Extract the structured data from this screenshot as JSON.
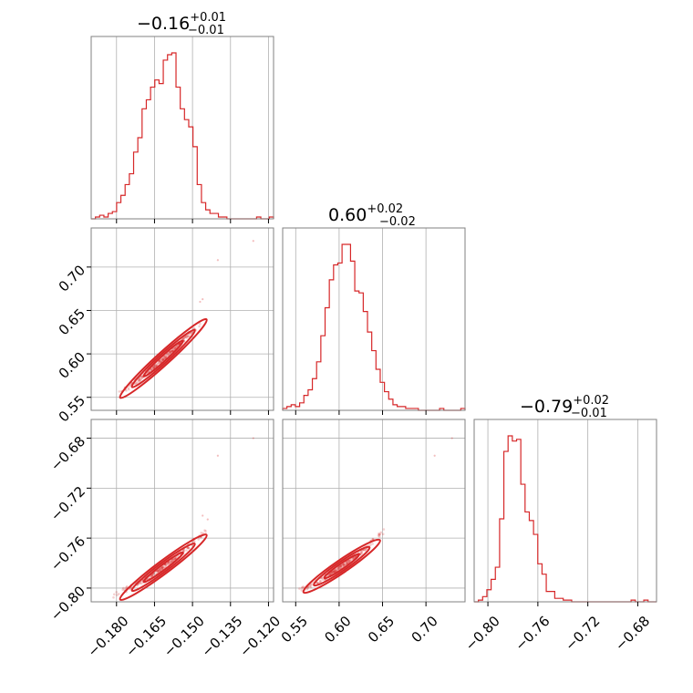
{
  "chart_data": {
    "type": "corner",
    "color": "#d62728",
    "grid": true,
    "parameters": [
      {
        "title_main": "−0.16",
        "title_sup": "+0.01",
        "title_sub": "−0.01",
        "range": [
          -0.19,
          -0.118
        ],
        "median": -0.163,
        "ticks": [
          -0.18,
          -0.165,
          -0.15,
          -0.135,
          -0.12
        ],
        "tick_labels": [
          "−0.180",
          "−0.165",
          "−0.150",
          "−0.135",
          "−0.120"
        ]
      },
      {
        "title_main": "0.60",
        "title_sup": "+0.02",
        "title_sub": "−0.02",
        "range": [
          0.535,
          0.745
        ],
        "median": 0.6,
        "ticks": [
          0.55,
          0.6,
          0.65,
          0.7
        ],
        "tick_labels": [
          "0.55",
          "0.60",
          "0.65",
          "0.70"
        ]
      },
      {
        "title_main": "−0.79",
        "title_sup": "+0.02",
        "title_sub": "−0.01",
        "range": [
          -0.811,
          -0.665
        ],
        "median": -0.789,
        "ticks": [
          -0.8,
          -0.76,
          -0.72,
          -0.68
        ],
        "tick_labels": [
          "−0.80",
          "−0.76",
          "−0.72",
          "−0.68"
        ]
      }
    ],
    "histograms": [
      {
        "param": 0,
        "counts": [
          0,
          1,
          2,
          1,
          3,
          4,
          9,
          13,
          19,
          25,
          37,
          45,
          61,
          66,
          73,
          77,
          75,
          88,
          91,
          92,
          73,
          61,
          55,
          51,
          40,
          19,
          9,
          5,
          3,
          3,
          1,
          1,
          0,
          0,
          0,
          0,
          0,
          0,
          0,
          1,
          0,
          0,
          1
        ]
      },
      {
        "param": 1,
        "counts": [
          1,
          2,
          3,
          2,
          4,
          8,
          11,
          17,
          26,
          40,
          55,
          70,
          78,
          79,
          89,
          89,
          80,
          64,
          63,
          53,
          42,
          32,
          22,
          15,
          10,
          6,
          3,
          2,
          2,
          1,
          1,
          1,
          0,
          0,
          0,
          0,
          0,
          1,
          0,
          0,
          0,
          0,
          1
        ]
      },
      {
        "param": 2,
        "counts": [
          0,
          1,
          3,
          7,
          13,
          20,
          48,
          87,
          96,
          93,
          94,
          68,
          52,
          47,
          39,
          22,
          16,
          6,
          6,
          2,
          2,
          1,
          1,
          0,
          0,
          0,
          0,
          0,
          0,
          0,
          0,
          0,
          0,
          0,
          0,
          0,
          0,
          1,
          0,
          0,
          1,
          0,
          0
        ]
      }
    ],
    "pairs": [
      {
        "x": 0,
        "y": 1,
        "ridge_x": [
          -0.184,
          -0.175,
          -0.165,
          -0.157,
          -0.15,
          -0.144,
          -0.139
        ],
        "ridge_y": [
          0.545,
          0.562,
          0.585,
          0.607,
          0.626,
          0.644,
          0.657
        ],
        "outliers": [
          [
            -0.126,
            0.73
          ],
          [
            -0.14,
            0.708
          ],
          [
            -0.146,
            0.663
          ],
          [
            -0.147,
            0.66
          ]
        ]
      },
      {
        "x": 0,
        "y": 2,
        "ridge_x": [
          -0.184,
          -0.175,
          -0.165,
          -0.157,
          -0.15,
          -0.144,
          -0.139
        ],
        "ridge_y": [
          -0.808,
          -0.8,
          -0.789,
          -0.776,
          -0.764,
          -0.753,
          -0.745
        ],
        "outliers": [
          [
            -0.126,
            -0.68
          ],
          [
            -0.14,
            -0.694
          ],
          [
            -0.146,
            -0.742
          ],
          [
            -0.144,
            -0.745
          ]
        ]
      },
      {
        "x": 1,
        "y": 2,
        "ridge_x": [
          0.543,
          0.56,
          0.58,
          0.6,
          0.62,
          0.64,
          0.663
        ],
        "ridge_y": [
          -0.807,
          -0.8,
          -0.793,
          -0.784,
          -0.774,
          -0.762,
          -0.747
        ],
        "outliers": [
          [
            0.73,
            -0.68
          ],
          [
            0.71,
            -0.694
          ]
        ]
      }
    ]
  }
}
